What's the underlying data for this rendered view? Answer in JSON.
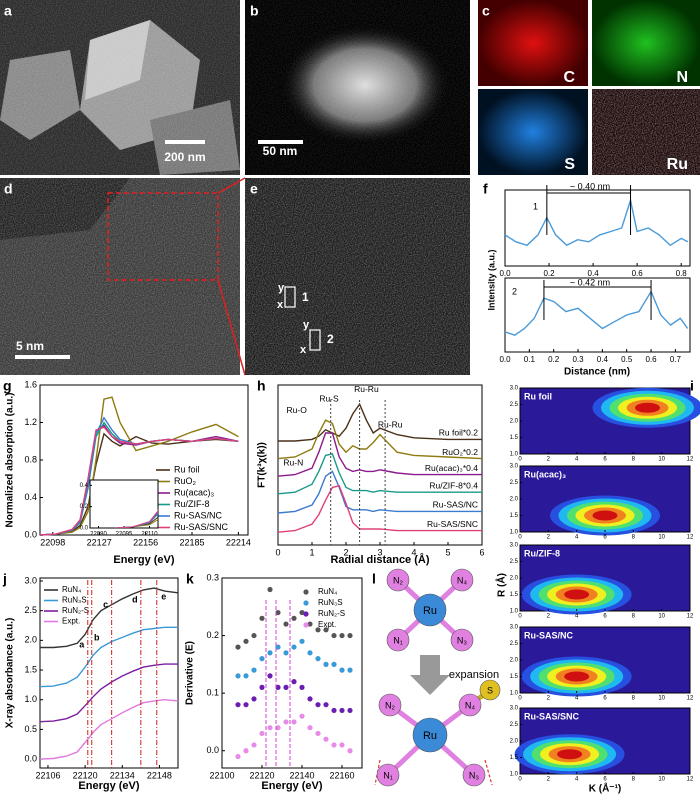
{
  "panel_labels": [
    "a",
    "b",
    "c",
    "d",
    "e",
    "f",
    "g",
    "h",
    "i",
    "j",
    "k",
    "l"
  ],
  "images": {
    "a": {
      "scale": "200 nm"
    },
    "b": {
      "scale": "50 nm"
    },
    "c": {
      "maps": [
        "C",
        "N",
        "S",
        "Ru"
      ]
    },
    "d": {
      "scale": "5 nm"
    },
    "e": {
      "regions": [
        {
          "y": "y",
          "x": "x",
          "id": "1"
        },
        {
          "y": "y",
          "x": "x",
          "id": "2"
        }
      ]
    }
  },
  "chart_data": [
    {
      "type": "line",
      "x": [
        0,
        0.05,
        0.1,
        0.15,
        0.19,
        0.23,
        0.28,
        0.33,
        0.38,
        0.43,
        0.48,
        0.53,
        0.57,
        0.6,
        0.65,
        0.7,
        0.75,
        0.8,
        0.83
      ],
      "series": [
        {
          "color": "#4a9ad8",
          "values": [
            0.45,
            0.35,
            0.3,
            0.45,
            0.7,
            0.45,
            0.3,
            0.38,
            0.35,
            0.45,
            0.5,
            0.55,
            0.95,
            0.5,
            0.55,
            0.45,
            0.3,
            0.4,
            0.35
          ]
        }
      ],
      "xlim": [
        0,
        0.84
      ],
      "ylim": [
        0,
        1.1
      ],
      "xticks": [
        {
          "value": 0,
          "label": "0.0"
        },
        0.2,
        0.4,
        0.6,
        0.8
      ],
      "y_label": "Intensity (a.u.)",
      "annotations": [
        "1",
        "~ 0.40 nm"
      ]
    },
    {
      "type": "line",
      "x": [
        0,
        0.04,
        0.08,
        0.12,
        0.16,
        0.2,
        0.25,
        0.3,
        0.35,
        0.4,
        0.45,
        0.5,
        0.55,
        0.6,
        0.64,
        0.68,
        0.72,
        0.75
      ],
      "series": [
        {
          "color": "#4a9ad8",
          "values": [
            0.3,
            0.25,
            0.35,
            0.5,
            0.8,
            0.75,
            0.6,
            0.65,
            0.5,
            0.35,
            0.45,
            0.55,
            0.6,
            0.9,
            0.55,
            0.4,
            0.5,
            0.35
          ]
        }
      ],
      "xlim": [
        0,
        0.76
      ],
      "ylim": [
        0,
        1.1
      ],
      "xticks": [
        {
          "value": 0,
          "label": "0.0"
        },
        0.1,
        0.2,
        0.3,
        0.4,
        0.5,
        0.6,
        0.7
      ],
      "x_label": "Distance (nm)",
      "annotations": [
        "2",
        "~ 0.42 nm"
      ]
    },
    {
      "type": "line",
      "x": [
        22090,
        22100,
        22110,
        22115,
        22120,
        22125,
        22130,
        22135,
        22140,
        22150,
        22160,
        22170,
        22185,
        22200,
        22214
      ],
      "series": [
        {
          "name": "Ru foil",
          "color": "#4a3018",
          "values": [
            0,
            0.01,
            0.04,
            0.1,
            0.3,
            0.75,
            1.08,
            1.0,
            0.95,
            1.05,
            0.98,
            0.97,
            1.0,
            1.02,
            1.0
          ]
        },
        {
          "name": "RuO₂",
          "color": "#8f7a10",
          "values": [
            0,
            0.01,
            0.03,
            0.08,
            0.25,
            0.8,
            1.45,
            1.47,
            1.2,
            0.9,
            0.95,
            1.0,
            1.1,
            1.18,
            1.05
          ]
        },
        {
          "name": "Ru(acac)₃",
          "color": "#8e1a8e",
          "values": [
            0,
            0.01,
            0.05,
            0.15,
            0.55,
            1.1,
            1.17,
            1.05,
            0.98,
            0.96,
            1.0,
            1.02,
            1.0,
            1.05,
            1.0
          ]
        },
        {
          "name": "Ru/ZIF-8",
          "color": "#1a9a88",
          "values": [
            0,
            0.01,
            0.05,
            0.13,
            0.5,
            1.05,
            1.2,
            1.08,
            1.0,
            0.97,
            1.0,
            1.02,
            1.0,
            1.03,
            1.0
          ]
        },
        {
          "name": "Ru-SAS/NC",
          "color": "#3a7ad0",
          "values": [
            0,
            0.01,
            0.05,
            0.14,
            0.52,
            1.08,
            1.25,
            1.12,
            1.02,
            0.97,
            1.0,
            1.02,
            1.0,
            1.03,
            1.0
          ]
        },
        {
          "name": "Ru-SAS/SNC",
          "color": "#e0407a",
          "values": [
            0,
            0.01,
            0.06,
            0.16,
            0.6,
            1.12,
            1.15,
            1.05,
            1.0,
            0.97,
            1.0,
            1.02,
            1.0,
            1.03,
            1.0
          ]
        }
      ],
      "xlim": [
        22090,
        22220
      ],
      "ylim": [
        0,
        1.6
      ],
      "xticks": [
        22098,
        22127,
        22156,
        22185,
        22214
      ],
      "yticks": [
        {
          "value": 0,
          "label": "0.0"
        },
        0.4,
        0.8,
        1.2,
        1.6
      ],
      "x_label": "Energy (eV)",
      "y_label": "Normalized absorption (a.u.)",
      "legend": "lower right",
      "inset": {
        "xlim": [
          22075,
          22115
        ],
        "ylim": [
          0,
          0.45
        ],
        "xticks": [
          22080,
          22095,
          22110
        ],
        "yticks": [
          {
            "value": 0,
            "label": "0.0"
          },
          0.2,
          0.4
        ]
      }
    },
    {
      "type": "line",
      "x": [
        0,
        0.5,
        1,
        1.2,
        1.4,
        1.6,
        1.8,
        2,
        2.2,
        2.4,
        2.6,
        2.8,
        3,
        3.5,
        4,
        5,
        6
      ],
      "series": [
        {
          "name": "Ru foil*0.2",
          "color": "#4a3018",
          "values": [
            6.5,
            6.5,
            6.6,
            6.8,
            7.2,
            7.0,
            6.8,
            7.3,
            8.2,
            8.8,
            7.8,
            7.0,
            7.3,
            6.9,
            6.7,
            6.6,
            6.6
          ]
        },
        {
          "name": "RuO₂*0.2",
          "color": "#8f7a10",
          "values": [
            5.4,
            5.5,
            6.0,
            7.0,
            7.8,
            7.6,
            6.3,
            5.8,
            6.2,
            6.0,
            6.0,
            6.4,
            6.9,
            5.8,
            5.6,
            5.5,
            5.4
          ]
        },
        {
          "name": "Ru(acac)₃*0.4",
          "color": "#8e1a8e",
          "values": [
            4.3,
            4.4,
            4.8,
            5.8,
            7.0,
            7.0,
            5.5,
            4.8,
            4.6,
            4.7,
            4.6,
            4.6,
            4.7,
            4.5,
            4.4,
            4.4,
            4.4
          ]
        },
        {
          "name": "Ru/ZIF-8*0.4",
          "color": "#1a9a88",
          "values": [
            3.2,
            3.3,
            3.8,
            4.6,
            5.6,
            5.7,
            4.5,
            3.6,
            3.4,
            3.4,
            3.4,
            3.3,
            3.4,
            3.3,
            3.3,
            3.3,
            3.3
          ]
        },
        {
          "name": "Ru-SAS/NC",
          "color": "#3a7ad0",
          "values": [
            2.0,
            2.1,
            2.5,
            3.2,
            4.3,
            4.6,
            3.6,
            2.4,
            2.2,
            2.2,
            2.2,
            2.1,
            2.2,
            2.1,
            2.1,
            2.1,
            2.1
          ]
        },
        {
          "name": "Ru-SAS/SNC",
          "color": "#e0407a",
          "values": [
            0.8,
            0.9,
            1.3,
            1.9,
            2.8,
            3.6,
            3.7,
            2.6,
            1.4,
            1.0,
            1.0,
            1.0,
            1.0,
            0.9,
            0.9,
            0.9,
            0.9
          ]
        }
      ],
      "xlim": [
        0,
        6
      ],
      "ylim": [
        0,
        10
      ],
      "xticks": [
        0,
        1,
        2,
        3,
        4,
        5,
        6
      ],
      "x_label": "Radial distance (Å)",
      "y_label": "FT(k³χ(k))",
      "legend": "inline",
      "annotations": [
        "Ru-Ru",
        "Ru-S",
        "Ru-O",
        "Ru-Ru",
        "Ru-N"
      ]
    },
    {
      "type": "contour",
      "maps": [
        {
          "title": "Ru foil",
          "peaks": [
            {
              "k": 9,
              "R": 2.4
            }
          ]
        },
        {
          "title": "Ru(acac)₃",
          "peaks": [
            {
              "k": 6,
              "R": 1.5
            }
          ]
        },
        {
          "title": "Ru/ZIF-8",
          "peaks": [
            {
              "k": 4,
              "R": 1.5
            }
          ]
        },
        {
          "title": "Ru-SAS/NC",
          "peaks": [
            {
              "k": 4,
              "R": 1.5
            }
          ]
        },
        {
          "title": "Ru-SAS/SNC",
          "peaks": [
            {
              "k": 3.5,
              "R": 1.6
            }
          ]
        }
      ],
      "xlim": [
        0,
        12
      ],
      "ylim": [
        1.0,
        3.0
      ],
      "xticks": [
        0,
        2,
        4,
        6,
        8,
        10,
        12
      ],
      "yticks": [
        {
          "value": 1,
          "label": "1.0"
        },
        1.5,
        {
          "value": 2,
          "label": "2.0"
        },
        2.5,
        {
          "value": 3,
          "label": "3.0"
        }
      ],
      "x_label": "K (Å⁻¹)",
      "y_label": "R (Å)"
    },
    {
      "type": "line",
      "x": [
        22103,
        22108,
        22113,
        22117,
        22120,
        22123,
        22126,
        22130,
        22134,
        22138,
        22142,
        22146,
        22150,
        22155
      ],
      "series": [
        {
          "name": "RuN₄",
          "color": "#333333",
          "values": [
            1.88,
            1.88,
            1.9,
            1.95,
            2.1,
            2.35,
            2.5,
            2.6,
            2.7,
            2.78,
            2.85,
            2.88,
            2.83,
            2.8
          ]
        },
        {
          "name": "RuN₃S",
          "color": "#3a9ad8",
          "values": [
            1.22,
            1.23,
            1.28,
            1.38,
            1.55,
            1.75,
            1.88,
            1.98,
            2.05,
            2.12,
            2.18,
            2.2,
            2.22,
            2.22
          ]
        },
        {
          "name": "RuN₂-S",
          "color": "#7b1fa2",
          "values": [
            0.63,
            0.64,
            0.68,
            0.76,
            0.9,
            1.05,
            1.18,
            1.3,
            1.4,
            1.48,
            1.55,
            1.58,
            1.6,
            1.6
          ]
        },
        {
          "name": "Expt.",
          "color": "#e07ae0",
          "values": [
            0,
            0.01,
            0.05,
            0.12,
            0.28,
            0.45,
            0.58,
            0.68,
            0.78,
            0.87,
            0.95,
            0.98,
            1.0,
            0.98
          ]
        }
      ],
      "xlim": [
        22103,
        22155
      ],
      "ylim": [
        -0.15,
        3.05
      ],
      "xticks": [
        22106,
        22120,
        22134,
        22148
      ],
      "yticks": [
        {
          "value": 0,
          "label": "0.0"
        },
        0.5,
        {
          "value": 1,
          "label": "1.0"
        },
        1.5,
        {
          "value": 2,
          "label": "2.0"
        },
        2.5,
        {
          "value": 3,
          "label": "3.0"
        }
      ],
      "x_label": "Energy (eV)",
      "y_label": "X-ray absorbance (a.u.)",
      "legend": "upper left",
      "annotations": [
        "a",
        "b",
        "c",
        "d",
        "e"
      ]
    },
    {
      "type": "scatter",
      "x": [
        22108,
        22112,
        22116,
        22120,
        22124,
        22128,
        22132,
        22136,
        22140,
        22144,
        22148,
        22152,
        22156,
        22160,
        22164
      ],
      "series": [
        {
          "name": "RuN₄",
          "color": "#555555",
          "values": [
            0.18,
            0.19,
            0.2,
            0.23,
            0.28,
            0.24,
            0.22,
            0.23,
            0.24,
            0.22,
            0.21,
            0.21,
            0.2,
            0.2,
            0.2
          ]
        },
        {
          "name": "RuN₃S",
          "color": "#3a9ad8",
          "values": [
            0.13,
            0.13,
            0.14,
            0.16,
            0.17,
            0.18,
            0.17,
            0.18,
            0.19,
            0.17,
            0.16,
            0.15,
            0.15,
            0.14,
            0.14
          ]
        },
        {
          "name": "RuN₂-S",
          "color": "#6a1fb0",
          "values": [
            0.08,
            0.08,
            0.09,
            0.11,
            0.13,
            0.11,
            0.11,
            0.12,
            0.11,
            0.09,
            0.08,
            0.08,
            0.07,
            0.07,
            0.07
          ]
        },
        {
          "name": "Expt.",
          "color": "#e88ae8",
          "values": [
            -0.01,
            0.0,
            0.01,
            0.03,
            0.04,
            0.04,
            0.05,
            0.05,
            0.06,
            0.04,
            0.03,
            0.02,
            0.01,
            0.01,
            0.0
          ]
        }
      ],
      "xlim": [
        22100,
        22170
      ],
      "ylim": [
        -0.03,
        0.3
      ],
      "xticks": [
        22100,
        22120,
        22140,
        22160
      ],
      "yticks": [
        {
          "value": 0,
          "label": "0.0"
        },
        0.1,
        0.2,
        0.3
      ],
      "x_label": "Energy (eV)",
      "y_label": "Derivative (E)",
      "legend": "upper right"
    }
  ],
  "diagram": {
    "center": "Ru",
    "ligands": [
      "N₂",
      "N₄",
      "N₁",
      "N₃"
    ],
    "arrow": "expansion",
    "center2": "Ru",
    "ligands2": [
      "N₂",
      "N₄",
      "N₁",
      "N₃"
    ],
    "sulfur": "S"
  }
}
